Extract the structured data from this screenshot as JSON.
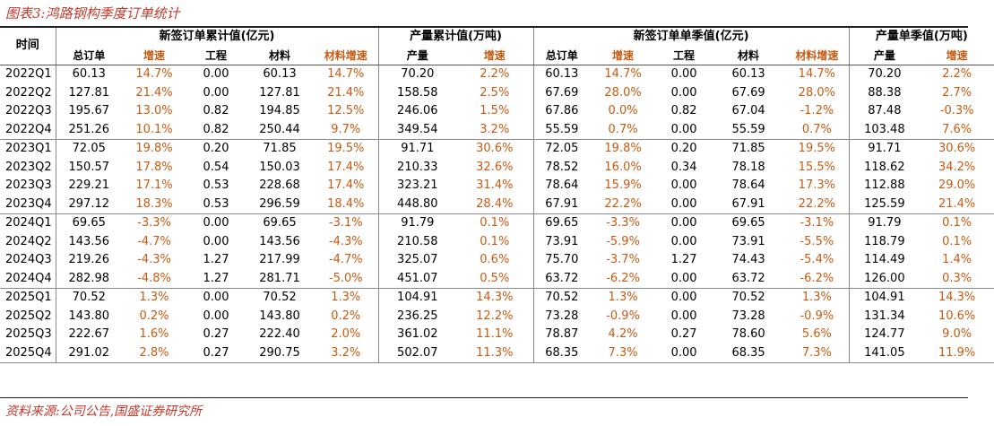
{
  "caption": "图表3:鸿路钢构季度订单统计",
  "source": "资料来源:公司公告,国盛证券研究所",
  "header": {
    "time": "时间",
    "groups": [
      "新签订单累计值(亿元)",
      "产量累计值(万吨)",
      "新签订单单季值(亿元)",
      "产量单季值(万吨)"
    ],
    "sub": [
      "总订单",
      "增速",
      "工程",
      "材料",
      "材料增速",
      "产量",
      "增速",
      "总订单",
      "增速",
      "工程",
      "材料",
      "材料增速",
      "产量",
      "增速"
    ]
  },
  "rows": [
    [
      "2022Q1",
      "60.13",
      "14.7%",
      "0.00",
      "60.13",
      "14.7%",
      "70.20",
      "2.2%",
      "60.13",
      "14.7%",
      "0.00",
      "60.13",
      "14.7%",
      "70.20",
      "2.2%"
    ],
    [
      "2022Q2",
      "127.81",
      "21.4%",
      "0.00",
      "127.81",
      "21.4%",
      "158.58",
      "2.5%",
      "67.69",
      "28.0%",
      "0.00",
      "67.69",
      "28.0%",
      "88.38",
      "2.7%"
    ],
    [
      "2022Q3",
      "195.67",
      "13.0%",
      "0.82",
      "194.85",
      "12.5%",
      "246.06",
      "1.5%",
      "67.86",
      "0.0%",
      "0.82",
      "67.04",
      "-1.2%",
      "87.48",
      "-0.3%"
    ],
    [
      "2022Q4",
      "251.26",
      "10.1%",
      "0.82",
      "250.44",
      "9.7%",
      "349.54",
      "3.2%",
      "55.59",
      "0.7%",
      "0.00",
      "55.59",
      "0.7%",
      "103.48",
      "7.6%"
    ],
    [
      "2023Q1",
      "72.05",
      "19.8%",
      "0.20",
      "71.85",
      "19.5%",
      "91.71",
      "30.6%",
      "72.05",
      "19.8%",
      "0.20",
      "71.85",
      "19.5%",
      "91.71",
      "30.6%"
    ],
    [
      "2023Q2",
      "150.57",
      "17.8%",
      "0.54",
      "150.03",
      "17.4%",
      "210.33",
      "32.6%",
      "78.52",
      "16.0%",
      "0.34",
      "78.18",
      "15.5%",
      "118.62",
      "34.2%"
    ],
    [
      "2023Q3",
      "229.21",
      "17.1%",
      "0.53",
      "228.68",
      "17.4%",
      "323.21",
      "31.4%",
      "78.64",
      "15.9%",
      "0.00",
      "78.64",
      "17.3%",
      "112.88",
      "29.0%"
    ],
    [
      "2023Q4",
      "297.12",
      "18.3%",
      "0.53",
      "296.59",
      "18.4%",
      "448.80",
      "28.4%",
      "67.91",
      "22.2%",
      "0.00",
      "67.91",
      "22.2%",
      "125.59",
      "21.4%"
    ],
    [
      "2024Q1",
      "69.65",
      "-3.3%",
      "0.00",
      "69.65",
      "-3.1%",
      "91.79",
      "0.1%",
      "69.65",
      "-3.3%",
      "0.00",
      "69.65",
      "-3.1%",
      "91.79",
      "0.1%"
    ],
    [
      "2024Q2",
      "143.56",
      "-4.7%",
      "0.00",
      "143.56",
      "-4.3%",
      "210.58",
      "0.1%",
      "73.91",
      "-5.9%",
      "0.00",
      "73.91",
      "-5.5%",
      "118.79",
      "0.1%"
    ],
    [
      "2024Q3",
      "219.26",
      "-4.3%",
      "1.27",
      "217.99",
      "-4.7%",
      "325.07",
      "0.6%",
      "75.70",
      "-3.7%",
      "1.27",
      "74.43",
      "-5.4%",
      "114.49",
      "1.4%"
    ],
    [
      "2024Q4",
      "282.98",
      "-4.8%",
      "1.27",
      "281.71",
      "-5.0%",
      "451.07",
      "0.5%",
      "63.72",
      "-6.2%",
      "0.00",
      "63.72",
      "-6.2%",
      "126.00",
      "0.3%"
    ],
    [
      "2025Q1",
      "70.52",
      "1.3%",
      "0.00",
      "70.52",
      "1.3%",
      "104.91",
      "14.3%",
      "70.52",
      "1.3%",
      "0.00",
      "70.52",
      "1.3%",
      "104.91",
      "14.3%"
    ],
    [
      "2025Q2",
      "143.80",
      "0.2%",
      "0.00",
      "143.80",
      "0.2%",
      "236.25",
      "12.2%",
      "73.28",
      "-0.9%",
      "0.00",
      "73.28",
      "-0.9%",
      "131.34",
      "10.6%"
    ],
    [
      "2025Q3",
      "222.67",
      "1.6%",
      "0.27",
      "222.40",
      "2.0%",
      "361.02",
      "11.1%",
      "78.87",
      "4.2%",
      "0.27",
      "78.60",
      "5.6%",
      "124.77",
      "9.0%"
    ],
    [
      "2025Q4",
      "291.02",
      "2.8%",
      "0.27",
      "290.75",
      "3.2%",
      "502.07",
      "11.3%",
      "68.35",
      "7.3%",
      "0.00",
      "68.35",
      "7.3%",
      "141.05",
      "11.9%"
    ]
  ]
}
